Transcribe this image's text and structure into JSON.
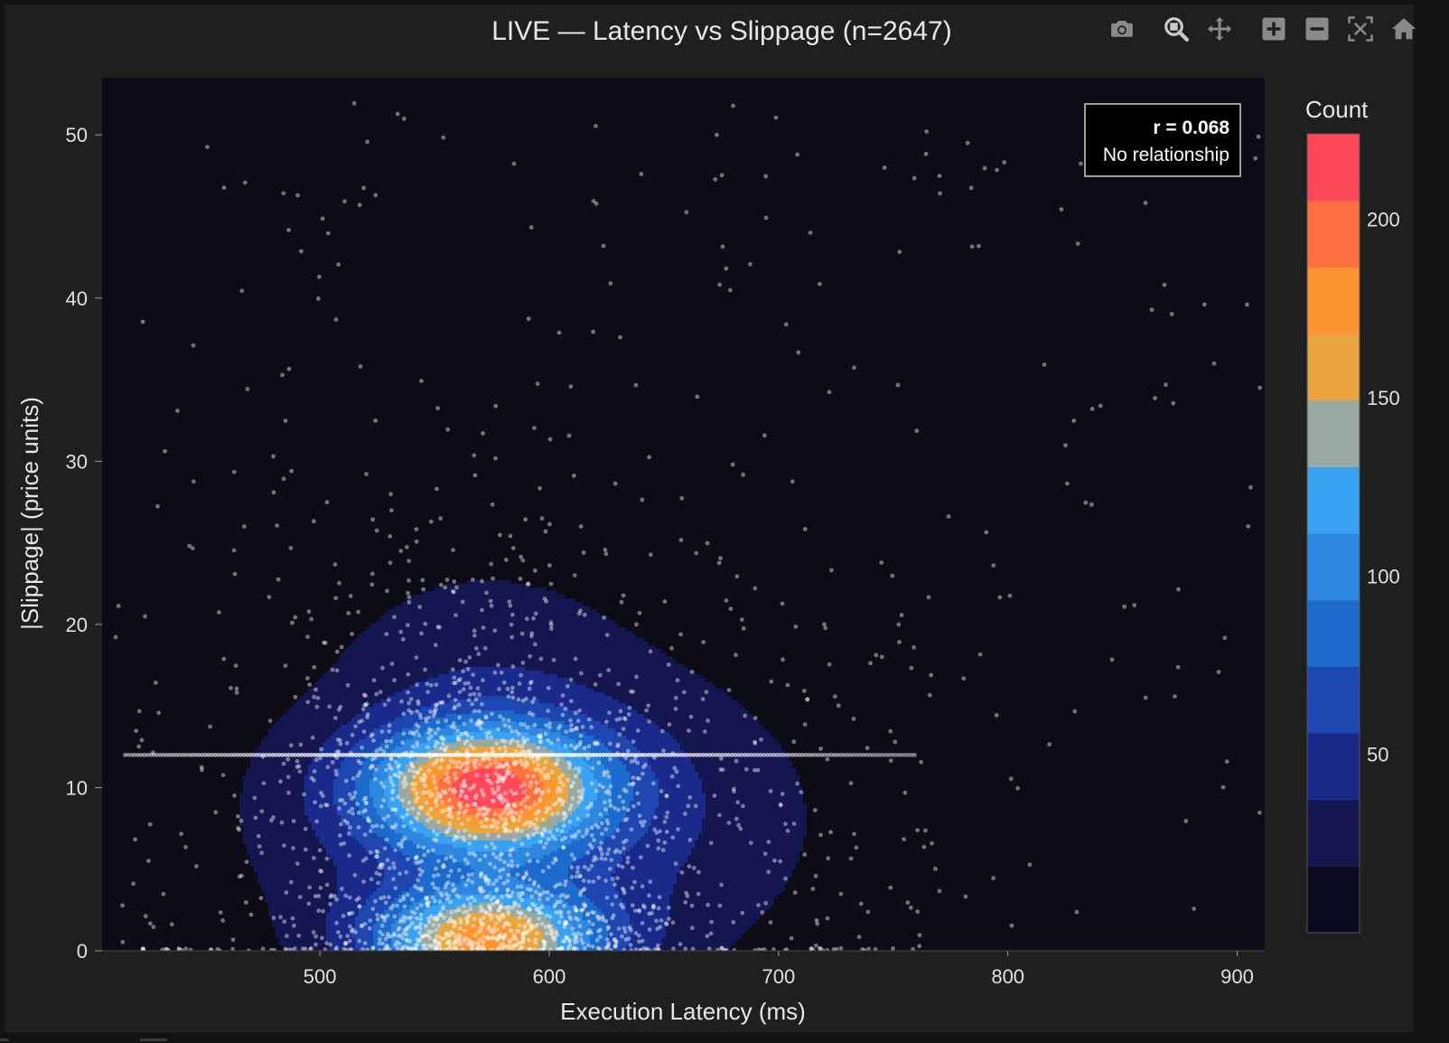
{
  "chart_data": {
    "type": "contour+scatter",
    "title": "LIVE — Latency vs Slippage (n=2647)",
    "xlabel": "Execution Latency (ms)",
    "ylabel": "|Slippage| (price units)",
    "xlim": [
      405,
      912
    ],
    "ylim": [
      0,
      53.5
    ],
    "x_ticks": [
      500,
      600,
      700,
      800,
      900
    ],
    "y_ticks": [
      0,
      10,
      20,
      30,
      40,
      50
    ],
    "grid": false,
    "n": 2647,
    "annotation": {
      "line1": "r = 0.068",
      "line2": "No relationship",
      "placement": "top-right"
    },
    "colorbar": {
      "title": "Count",
      "ticks": [
        50,
        100,
        150,
        200
      ],
      "range": [
        0,
        224
      ],
      "colorscale": [
        "#0b0b1f",
        "#141650",
        "#1a2a8a",
        "#1d46b0",
        "#1c6acc",
        "#2d86e0",
        "#3aa2f2",
        "#98a9a2",
        "#e8a540",
        "#ff9530",
        "#ff7040",
        "#ff4858"
      ]
    },
    "density_model": {
      "components": [
        {
          "x": 573,
          "y": 10,
          "sx": 34,
          "sy": 2.6,
          "weight": 1.0
        },
        {
          "x": 573,
          "y": 0.6,
          "sx": 34,
          "sy": 2.2,
          "weight": 0.86
        },
        {
          "x": 590,
          "y": 8,
          "sx": 85,
          "sy": 7.5,
          "weight": 0.3
        },
        {
          "x": 570,
          "y": 20,
          "sx": 45,
          "sy": 4,
          "weight": 0.08
        }
      ],
      "peak_count": 224
    },
    "horizontal_band": {
      "y": 12,
      "x_range": [
        415,
        760
      ]
    }
  },
  "modebar": {
    "icons": [
      "camera-icon",
      "zoom-icon",
      "pan-icon",
      "zoom-in-icon",
      "zoom-out-icon",
      "autoscale-icon",
      "home-icon"
    ]
  }
}
